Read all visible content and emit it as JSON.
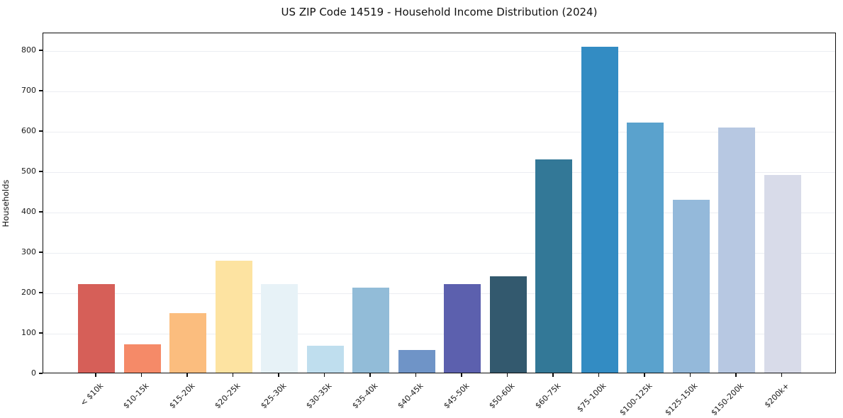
{
  "chart_data": {
    "type": "bar",
    "title": "US ZIP Code 14519 - Household Income Distribution (2024)",
    "xlabel": "",
    "ylabel": "Households",
    "categories": [
      "< $10k",
      "$10-15k",
      "$15-20k",
      "$20-25k",
      "$25-30k",
      "$30-35k",
      "$35-40k",
      "$40-45k",
      "$45-50k",
      "$50-60k",
      "$60-75k",
      "$75-100k",
      "$100-125k",
      "$125-150k",
      "$150-200k",
      "$200k+"
    ],
    "values": [
      220,
      70,
      147,
      278,
      219,
      67,
      211,
      56,
      219,
      238,
      529,
      808,
      620,
      428,
      607,
      490
    ],
    "bar_colors": [
      "#d65f58",
      "#f58a68",
      "#fbbd7e",
      "#fde3a1",
      "#e7f2f7",
      "#bfdeee",
      "#92bcd8",
      "#6f94c7",
      "#5c60ae",
      "#33596e",
      "#337897",
      "#338cc3",
      "#5aa2cd",
      "#94b9da",
      "#b7c8e2",
      "#d8dbe9"
    ],
    "yticks": [
      0,
      100,
      200,
      300,
      400,
      500,
      600,
      700,
      800
    ],
    "ylim": [
      0,
      844
    ],
    "grid": "horizontal-only",
    "legend": "none",
    "x_tick_rotation_deg": 45
  },
  "colors": {
    "background": "#ffffff",
    "spine": "#0d0d0d",
    "gridline": "#ebedf2",
    "text": "#111111"
  }
}
